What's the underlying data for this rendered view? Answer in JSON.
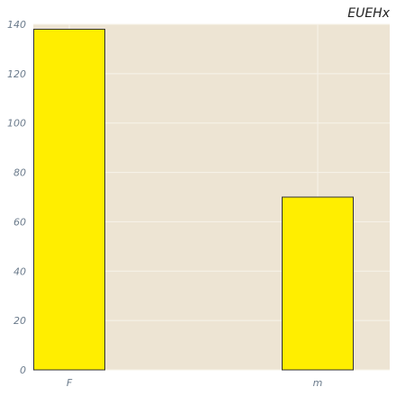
{
  "chart_data": {
    "type": "bar",
    "title": "EUEHx",
    "xlabel": "",
    "ylabel": "",
    "categories": [
      "F",
      "m"
    ],
    "values": [
      138,
      70
    ],
    "ylim": [
      0,
      140
    ],
    "yticks": [
      0,
      20,
      40,
      60,
      80,
      100,
      120,
      140
    ],
    "grid": true,
    "bar_color": "#ffee00",
    "bar_edge_color": "#333333",
    "background_color": "#ede4d3",
    "grid_color": "#f7f3ea"
  }
}
